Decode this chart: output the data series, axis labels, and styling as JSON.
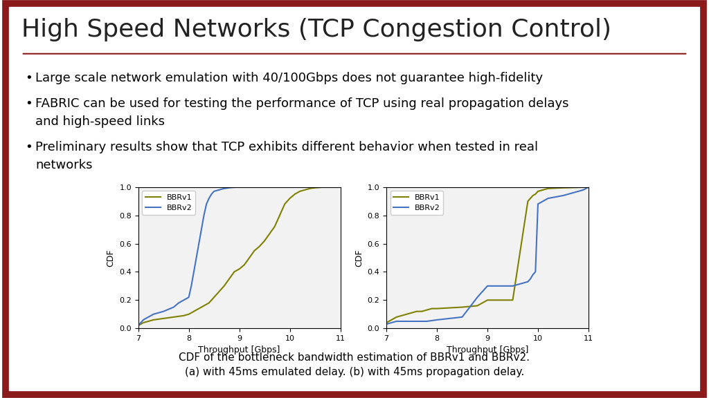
{
  "title": "High Speed Networks (TCP Congestion Control)",
  "title_fontsize": 26,
  "title_color": "#222222",
  "border_color": "#8B1A1A",
  "background_color": "#ffffff",
  "caption_line1": "CDF of the bottleneck bandwidth estimation of BBRv1 and BBRv2.",
  "caption_line2": "(a) with 45ms emulated delay. (b) with 45ms propagation delay.",
  "bbrv1_color": "#808000",
  "bbrv2_color": "#4472C4",
  "xlabel": "Throughput [Gbps]",
  "ylabel": "CDF",
  "xlim": [
    7,
    11
  ],
  "ylim": [
    0.0,
    1.0
  ],
  "xticks": [
    7,
    8,
    9,
    10,
    11
  ],
  "yticks": [
    0.0,
    0.2,
    0.4,
    0.6,
    0.8,
    1.0
  ],
  "plot_a_bbrv1_x": [
    7.0,
    7.05,
    7.1,
    7.2,
    7.3,
    7.5,
    7.7,
    7.9,
    8.0,
    8.1,
    8.2,
    8.3,
    8.4,
    8.5,
    8.6,
    8.7,
    8.8,
    8.9,
    9.0,
    9.1,
    9.2,
    9.3,
    9.4,
    9.5,
    9.6,
    9.7,
    9.8,
    9.9,
    10.0,
    10.1,
    10.2,
    10.3,
    10.4,
    10.5,
    10.6,
    10.7
  ],
  "plot_a_bbrv1_y": [
    0.02,
    0.03,
    0.04,
    0.05,
    0.06,
    0.07,
    0.08,
    0.09,
    0.1,
    0.12,
    0.14,
    0.16,
    0.18,
    0.22,
    0.26,
    0.3,
    0.35,
    0.4,
    0.42,
    0.45,
    0.5,
    0.55,
    0.58,
    0.62,
    0.67,
    0.72,
    0.8,
    0.88,
    0.92,
    0.95,
    0.97,
    0.98,
    0.99,
    0.995,
    0.998,
    1.0
  ],
  "plot_a_bbrv2_x": [
    7.0,
    7.05,
    7.1,
    7.2,
    7.3,
    7.5,
    7.7,
    7.8,
    7.9,
    8.0,
    8.05,
    8.1,
    8.15,
    8.2,
    8.25,
    8.3,
    8.35,
    8.4,
    8.45,
    8.5,
    8.6,
    8.7,
    8.8,
    8.85,
    8.9,
    8.95,
    9.0
  ],
  "plot_a_bbrv2_y": [
    0.02,
    0.04,
    0.06,
    0.08,
    0.1,
    0.12,
    0.15,
    0.18,
    0.2,
    0.22,
    0.3,
    0.4,
    0.5,
    0.6,
    0.7,
    0.8,
    0.88,
    0.92,
    0.95,
    0.97,
    0.98,
    0.99,
    0.995,
    0.997,
    0.998,
    0.999,
    1.0
  ],
  "plot_b_bbrv1_x": [
    7.0,
    7.1,
    7.2,
    7.3,
    7.4,
    7.5,
    7.6,
    7.7,
    7.8,
    7.9,
    8.0,
    8.5,
    8.8,
    8.85,
    8.9,
    8.95,
    9.0,
    9.5,
    9.8,
    9.85,
    9.9,
    9.95,
    10.0,
    10.1,
    10.2,
    10.5,
    11.0
  ],
  "plot_b_bbrv1_y": [
    0.04,
    0.06,
    0.08,
    0.09,
    0.1,
    0.11,
    0.12,
    0.12,
    0.13,
    0.14,
    0.14,
    0.15,
    0.16,
    0.17,
    0.18,
    0.19,
    0.2,
    0.2,
    0.9,
    0.92,
    0.94,
    0.95,
    0.97,
    0.98,
    0.99,
    0.995,
    1.0
  ],
  "plot_b_bbrv2_x": [
    7.0,
    7.1,
    7.2,
    7.5,
    7.8,
    8.0,
    8.5,
    8.8,
    8.85,
    8.9,
    8.95,
    9.0,
    9.5,
    9.8,
    9.85,
    9.9,
    9.95,
    10.0,
    10.1,
    10.2,
    10.5,
    10.7,
    10.9,
    11.0
  ],
  "plot_b_bbrv2_y": [
    0.03,
    0.04,
    0.05,
    0.05,
    0.05,
    0.06,
    0.08,
    0.22,
    0.24,
    0.26,
    0.28,
    0.3,
    0.3,
    0.33,
    0.35,
    0.38,
    0.4,
    0.88,
    0.9,
    0.92,
    0.94,
    0.96,
    0.98,
    1.0
  ],
  "bullet1": "Large scale network emulation with 40/100Gbps does not guarantee high-fidelity",
  "bullet2a": "FABRIC can be used for testing the performance of TCP using real propagation delays",
  "bullet2b": "and high-speed links",
  "bullet3a": "Preliminary results show that TCP exhibits different behavior when tested in real",
  "bullet3b": "networks"
}
